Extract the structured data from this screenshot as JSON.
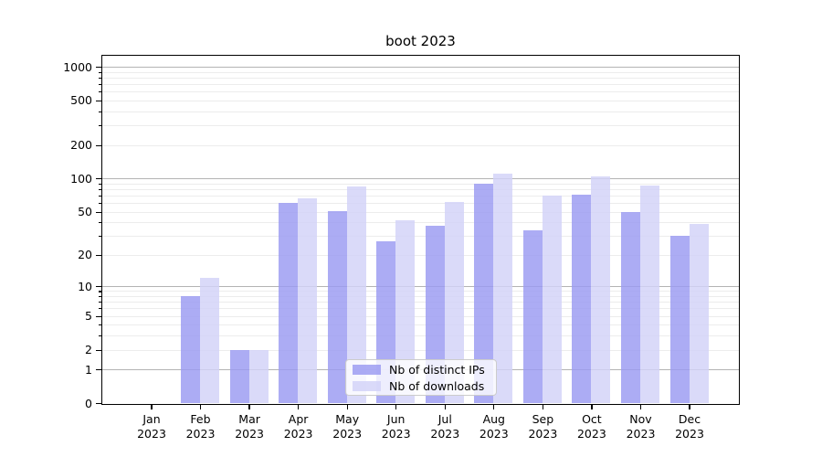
{
  "chart_data": {
    "type": "bar",
    "title": "boot 2023",
    "xlabel": "",
    "ylabel": "",
    "categories": [
      "Jan",
      "Feb",
      "Mar",
      "Apr",
      "May",
      "Jun",
      "Jul",
      "Aug",
      "Sep",
      "Oct",
      "Nov",
      "Dec"
    ],
    "year_label": "2023",
    "series": [
      {
        "name": "Nb of distinct IPs",
        "color": "#9a9af2",
        "values": [
          0,
          8,
          2,
          60,
          51,
          27,
          37,
          89,
          34,
          71,
          50,
          30
        ]
      },
      {
        "name": "Nb of downloads",
        "color": "#d2d2f8",
        "values": [
          0,
          12,
          2,
          66,
          84,
          42,
          61,
          110,
          70,
          105,
          87,
          39
        ]
      }
    ],
    "yscale": "log1p",
    "ylim": [
      0,
      1250
    ],
    "ytick_labels": [
      0,
      1,
      2,
      5,
      10,
      20,
      50,
      100,
      200,
      500,
      1000
    ],
    "major_gridlines": [
      1,
      10,
      100,
      1000
    ],
    "grid": true,
    "legend_position": "lower center"
  }
}
